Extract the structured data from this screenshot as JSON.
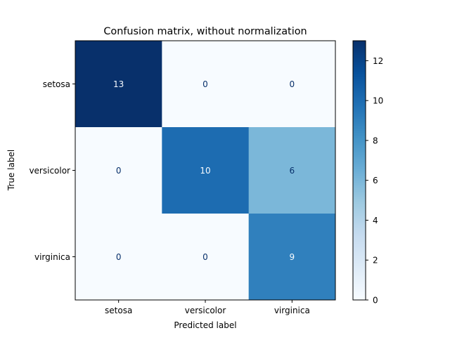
{
  "chart_data": {
    "type": "heatmap",
    "title": "Confusion matrix, without normalization",
    "xlabel": "Predicted label",
    "ylabel": "True label",
    "x_categories": [
      "setosa",
      "versicolor",
      "virginica"
    ],
    "y_categories": [
      "setosa",
      "versicolor",
      "virginica"
    ],
    "values": [
      [
        13,
        0,
        0
      ],
      [
        0,
        10,
        6
      ],
      [
        0,
        0,
        9
      ]
    ],
    "colormap": "Blues",
    "colorbar": {
      "range": [
        0,
        13
      ],
      "ticks": [
        0,
        2,
        4,
        6,
        8,
        10,
        12
      ]
    },
    "colors": {
      "low": "#f7fbff",
      "high": "#08306b"
    }
  }
}
